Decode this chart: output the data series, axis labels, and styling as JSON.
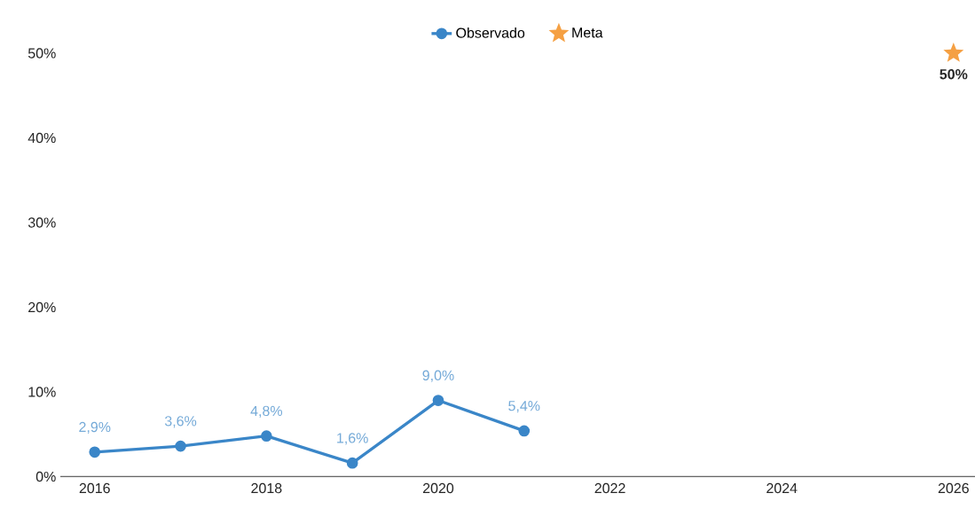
{
  "chart_data": {
    "type": "line",
    "legend": "top",
    "xlim": [
      2015.6,
      2026.25
    ],
    "ylim": [
      0,
      50
    ],
    "xticks": [
      2016,
      2018,
      2020,
      2022,
      2024,
      2026
    ],
    "yticks": [
      {
        "value": 0,
        "label": "0%"
      },
      {
        "value": 10,
        "label": "10%"
      },
      {
        "value": 20,
        "label": "20%"
      },
      {
        "value": 30,
        "label": "30%"
      },
      {
        "value": 40,
        "label": "40%"
      },
      {
        "value": 50,
        "label": "50%"
      }
    ],
    "series": [
      {
        "name": "Observado",
        "color": "#3a86c8",
        "marker": "circle",
        "x": [
          2016,
          2017,
          2018,
          2019,
          2020,
          2021
        ],
        "values": [
          2.9,
          3.6,
          4.8,
          1.6,
          9.0,
          5.4
        ],
        "value_labels": [
          "2,9%",
          "3,6%",
          "4,8%",
          "1,6%",
          "9,0%",
          "5,4%"
        ]
      },
      {
        "name": "Meta",
        "type": "scatter",
        "color": "#f5a043",
        "marker": "star",
        "x": [
          2026
        ],
        "values": [
          50
        ],
        "value_labels": [
          "50%"
        ]
      }
    ]
  }
}
